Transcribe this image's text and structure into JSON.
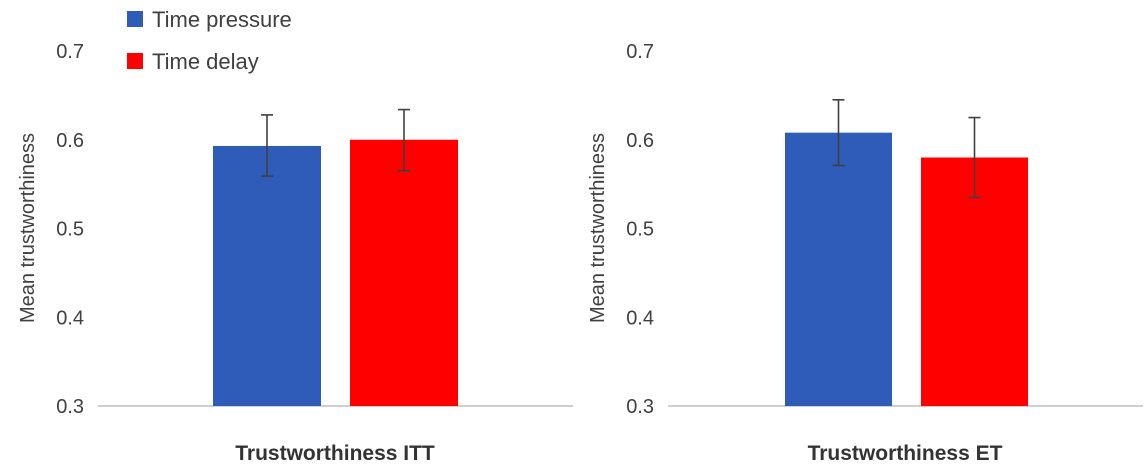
{
  "legend": {
    "items": [
      {
        "label": "Time pressure",
        "color": "#2e5cb8"
      },
      {
        "label": "Time delay",
        "color": "#ff0000"
      }
    ]
  },
  "chart_data": [
    {
      "type": "bar",
      "xlabel": "Trustworthiness ITT",
      "ylabel": "Mean trustworthiness",
      "ylim": [
        0.3,
        0.7
      ],
      "yticks": [
        "0.3",
        "0.4",
        "0.5",
        "0.6",
        "0.7"
      ],
      "grid": false,
      "series": [
        {
          "name": "Time pressure",
          "value": 0.593,
          "err_low": 0.559,
          "err_high": 0.628,
          "color": "#2e5cb8"
        },
        {
          "name": "Time delay",
          "value": 0.6,
          "err_low": 0.565,
          "err_high": 0.634,
          "color": "#ff0000"
        }
      ]
    },
    {
      "type": "bar",
      "xlabel": "Trustworthiness ET",
      "ylabel": "Mean trustworthiness",
      "ylim": [
        0.3,
        0.7
      ],
      "yticks": [
        "0.3",
        "0.4",
        "0.5",
        "0.6",
        "0.7"
      ],
      "grid": false,
      "series": [
        {
          "name": "Time pressure",
          "value": 0.608,
          "err_low": 0.571,
          "err_high": 0.645,
          "color": "#2e5cb8"
        },
        {
          "name": "Time delay",
          "value": 0.58,
          "err_low": 0.535,
          "err_high": 0.625,
          "color": "#ff0000"
        }
      ]
    }
  ]
}
